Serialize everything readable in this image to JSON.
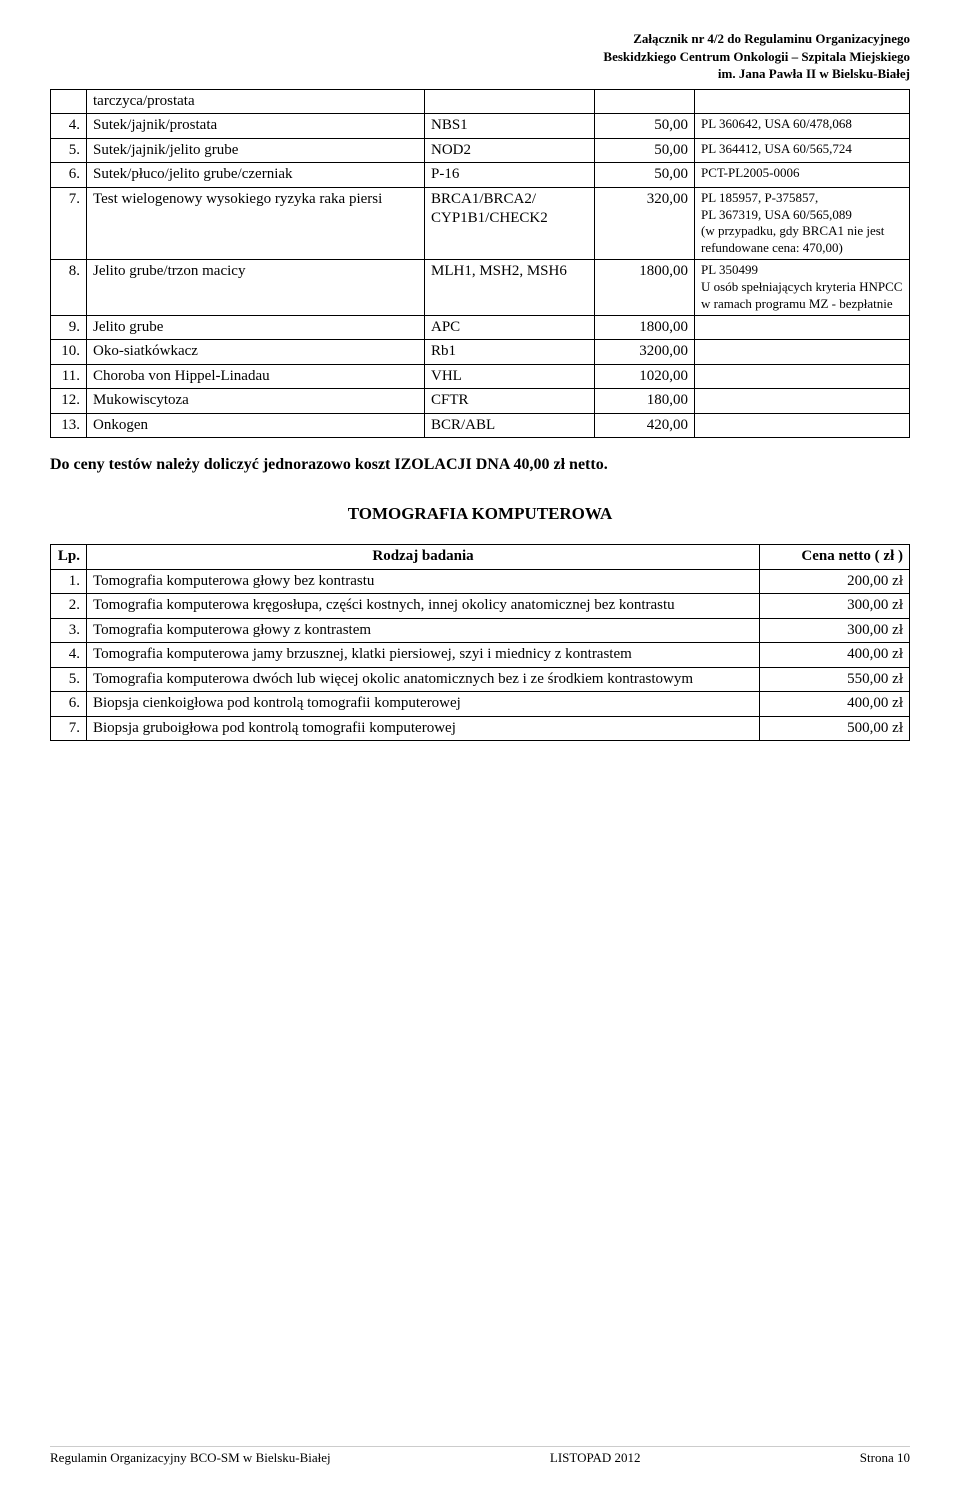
{
  "header": {
    "line1": "Załącznik nr 4/2 do Regulaminu Organizacyjnego",
    "line2": "Beskidzkiego Centrum Onkologii – Szpitala Miejskiego",
    "line3": "im. Jana Pawła II w Bielsku-Białej"
  },
  "table1": {
    "rows": [
      {
        "num": "",
        "name": "tarczyca/prostata",
        "gene": "",
        "price": "",
        "note": ""
      },
      {
        "num": "4.",
        "name": "Sutek/jajnik/prostata",
        "gene": "NBS1",
        "price": "50,00",
        "note": "PL 360642, USA 60/478,068"
      },
      {
        "num": "5.",
        "name": "Sutek/jajnik/jelito grube",
        "gene": "NOD2",
        "price": "50,00",
        "note": "PL 364412, USA 60/565,724"
      },
      {
        "num": "6.",
        "name": "Sutek/płuco/jelito grube/czerniak",
        "gene": "P-16",
        "price": "50,00",
        "note": "PCT-PL2005-0006"
      },
      {
        "num": "7.",
        "name": "Test wielogenowy wysokiego ryzyka raka piersi",
        "gene": "BRCA1/BRCA2/ CYP1B1/CHECK2",
        "price": "320,00",
        "note": "PL 185957, P-375857,\nPL 367319, USA 60/565,089\n(w przypadku, gdy BRCA1 nie jest refundowane cena: 470,00)"
      },
      {
        "num": "8.",
        "name": "Jelito grube/trzon macicy",
        "gene": "MLH1, MSH2, MSH6",
        "price": "1800,00",
        "note": "PL  350499\nU osób spełniających kryteria HNPCC w ramach programu MZ - bezpłatnie"
      },
      {
        "num": "9.",
        "name": "Jelito grube",
        "gene": "APC",
        "price": "1800,00",
        "note": ""
      },
      {
        "num": "10.",
        "name": "Oko-siatkówkacz",
        "gene": "Rb1",
        "price": "3200,00",
        "note": ""
      },
      {
        "num": "11.",
        "name": "Choroba von Hippel-Linadau",
        "gene": "VHL",
        "price": "1020,00",
        "note": ""
      },
      {
        "num": "12.",
        "name": "Mukowiscytoza",
        "gene": "CFTR",
        "price": "180,00",
        "note": ""
      },
      {
        "num": "13.",
        "name": "Onkogen",
        "gene": "BCR/ABL",
        "price": "420,00",
        "note": ""
      }
    ]
  },
  "note_paragraph": "Do ceny testów należy doliczyć jednorazowo koszt IZOLACJI  DNA  40,00 zł netto.",
  "section_title": "TOMOGRAFIA KOMPUTEROWA",
  "table2": {
    "header": {
      "lp": "Lp.",
      "name": "Rodzaj badania",
      "price": "Cena netto ( zł )"
    },
    "rows": [
      {
        "num": "1.",
        "name": "Tomografia komputerowa głowy bez kontrastu",
        "price": "200,00 zł"
      },
      {
        "num": "2.",
        "name": "Tomografia komputerowa kręgosłupa, części kostnych, innej okolicy anatomicznej bez kontrastu",
        "price": "300,00 zł"
      },
      {
        "num": "3.",
        "name": "Tomografia komputerowa głowy z kontrastem",
        "price": "300,00 zł"
      },
      {
        "num": "4.",
        "name": "Tomografia komputerowa jamy brzusznej, klatki piersiowej, szyi i miednicy z kontrastem",
        "price": "400,00 zł"
      },
      {
        "num": "5.",
        "name": "Tomografia komputerowa dwóch lub więcej okolic anatomicznych bez i ze środkiem kontrastowym",
        "price": "550,00 zł"
      },
      {
        "num": "6.",
        "name": "Biopsja cienkoigłowa pod kontrolą tomografii komputerowej",
        "price": "400,00 zł"
      },
      {
        "num": "7.",
        "name": "Biopsja gruboigłowa pod kontrolą tomografii komputerowej",
        "price": "500,00 zł"
      }
    ]
  },
  "footer": {
    "left": "Regulamin Organizacyjny BCO-SM w Bielsku-Białej",
    "center": "LISTOPAD  2012",
    "right": "Strona 10"
  }
}
